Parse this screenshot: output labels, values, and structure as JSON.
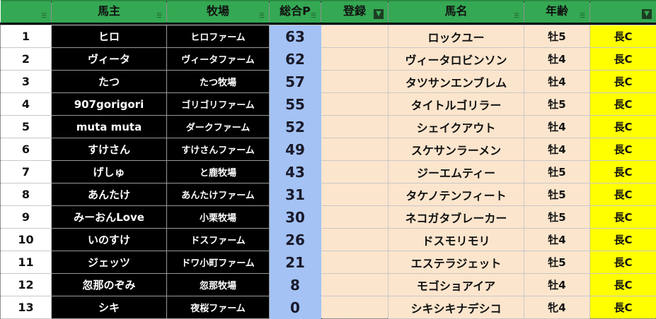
{
  "headers": [
    "",
    "馬主",
    "牧場",
    "総合P",
    "登録",
    "馬名",
    "年齢",
    ""
  ],
  "filter_active": [
    false,
    false,
    false,
    false,
    true,
    false,
    false,
    true
  ],
  "colors": {
    "header": "#34a853",
    "points": "#a4c2f4",
    "horse": "#fce5cd",
    "class": "#ffff00",
    "owner": "#000000"
  },
  "rows": [
    {
      "no": "1",
      "owner": "ヒロ",
      "farm": "ヒロファーム",
      "points": "63",
      "reg": "",
      "horse": "ロックユー",
      "age": "牡5",
      "cls": "長C"
    },
    {
      "no": "2",
      "owner": "ヴィータ",
      "farm": "ヴィータファーム",
      "points": "62",
      "reg": "",
      "horse": "ヴィータロビンソン",
      "age": "牡4",
      "cls": "長C"
    },
    {
      "no": "3",
      "owner": "たつ",
      "farm": "たつ牧場",
      "points": "57",
      "reg": "",
      "horse": "タツサンエンブレム",
      "age": "牡4",
      "cls": "長C"
    },
    {
      "no": "4",
      "owner": "907gorigori",
      "farm": "ゴリゴリファーム",
      "points": "55",
      "reg": "",
      "horse": "タイトルゴリラー",
      "age": "牡5",
      "cls": "長C"
    },
    {
      "no": "5",
      "owner": "muta muta",
      "farm": "ダークファーム",
      "points": "52",
      "reg": "",
      "horse": "シェイクアウト",
      "age": "牡4",
      "cls": "長C"
    },
    {
      "no": "6",
      "owner": "すけさん",
      "farm": "すけさんファーム",
      "points": "49",
      "reg": "",
      "horse": "スケサンラーメン",
      "age": "牡4",
      "cls": "長C"
    },
    {
      "no": "7",
      "owner": "げしゅ",
      "farm": "と鹿牧場",
      "points": "43",
      "reg": "",
      "horse": "ジーエムティー",
      "age": "牡5",
      "cls": "長C"
    },
    {
      "no": "8",
      "owner": "あんたけ",
      "farm": "あんたけファーム",
      "points": "31",
      "reg": "",
      "horse": "タケノテンフィート",
      "age": "牡5",
      "cls": "長C"
    },
    {
      "no": "9",
      "owner": "みーおんLove",
      "farm": "小栗牧場",
      "points": "30",
      "reg": "",
      "horse": "ネコガタブレーカー",
      "age": "牡5",
      "cls": "長C"
    },
    {
      "no": "10",
      "owner": "いのすけ",
      "farm": "ドスファーム",
      "points": "26",
      "reg": "",
      "horse": "ドスモリモリ",
      "age": "牡4",
      "cls": "長C"
    },
    {
      "no": "11",
      "owner": "ジェッツ",
      "farm": "ドワ小町ファーム",
      "points": "21",
      "reg": "",
      "horse": "エステラジェット",
      "age": "牡5",
      "cls": "長C"
    },
    {
      "no": "12",
      "owner": "忽那のぞみ",
      "farm": "忽那牧場",
      "points": "8",
      "reg": "",
      "horse": "モゴショアイア",
      "age": "牡4",
      "cls": "長C"
    },
    {
      "no": "13",
      "owner": "シキ",
      "farm": "夜桜ファーム",
      "points": "0",
      "reg": "",
      "horse": "シキシキナデシコ",
      "age": "牝4",
      "cls": "長C"
    }
  ]
}
